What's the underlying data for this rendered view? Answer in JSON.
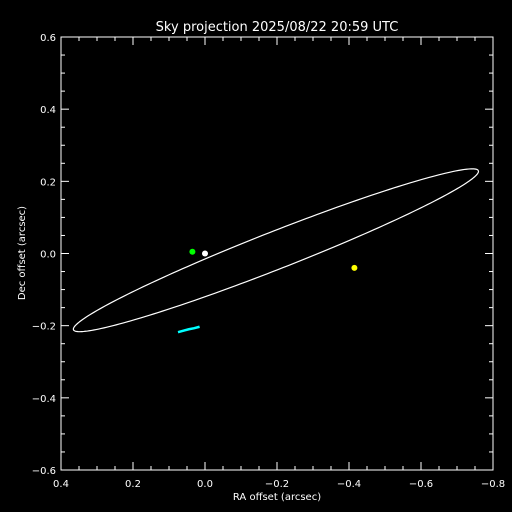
{
  "chart_data": {
    "type": "scatter",
    "title": "Sky projection 2025/08/22 20:59 UTC",
    "xlabel": "RA offset (arcsec)",
    "ylabel": "Dec offset (arcsec)",
    "xlim": [
      0.4,
      -0.8
    ],
    "ylim": [
      -0.6,
      0.6
    ],
    "x_reversed": true,
    "grid": false,
    "background": "#000000",
    "foreground": "#ffffff",
    "x_ticks": [
      0.4,
      0.2,
      0.0,
      -0.2,
      -0.4,
      -0.6,
      -0.8
    ],
    "x_tick_labels": [
      "0.4",
      "0.2",
      "0.0",
      "−0.2",
      "−0.4",
      "−0.6",
      "−0.8"
    ],
    "y_ticks": [
      -0.6,
      -0.4,
      -0.2,
      0.0,
      0.2,
      0.4,
      0.6
    ],
    "y_tick_labels": [
      "−0.6",
      "−0.4",
      "−0.2",
      "0.0",
      "0.2",
      "0.4",
      "0.6"
    ],
    "orbit": {
      "color": "#ffffff",
      "center": [
        -0.197,
        0.009
      ],
      "semi_major": 0.604,
      "semi_minor": 0.052,
      "orientation_deg": 21.4
    },
    "points": [
      {
        "label": "star",
        "x": 0.0,
        "y": 0.0,
        "color": "#ffffff"
      },
      {
        "label": "green-marker",
        "x": 0.035,
        "y": 0.005,
        "color": "#00ff00"
      },
      {
        "label": "yellow-marker",
        "x": -0.415,
        "y": -0.04,
        "color": "#ffff00"
      }
    ],
    "arc": {
      "color": "#00ffff",
      "x": [
        0.075,
        0.06,
        0.045,
        0.03,
        0.015
      ],
      "y": [
        -0.218,
        -0.214,
        -0.21,
        -0.207,
        -0.203
      ]
    }
  }
}
